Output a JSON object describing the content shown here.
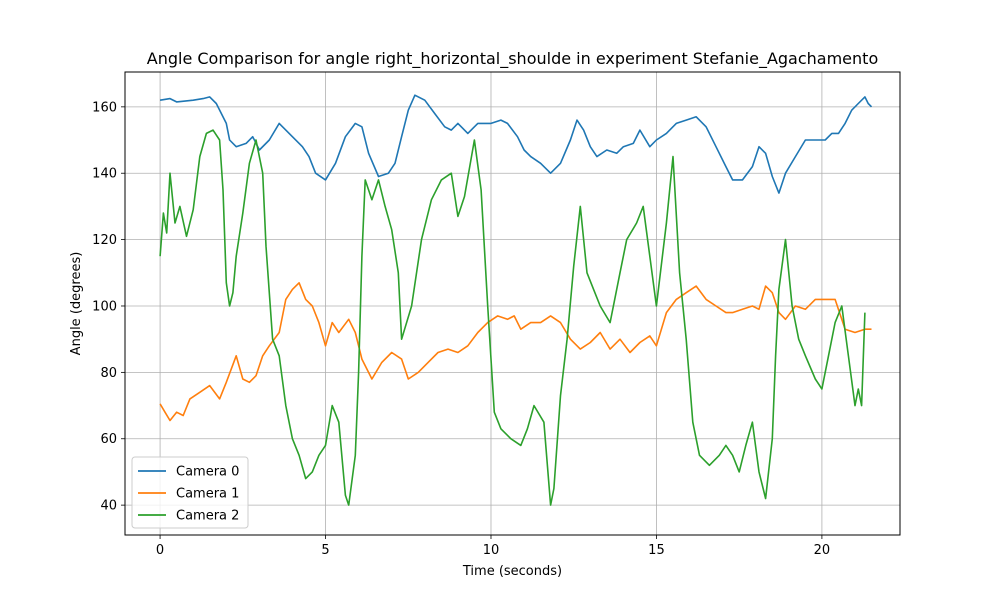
{
  "chart_data": {
    "type": "line",
    "title": "Angle Comparison for angle right_horizontal_shoulde in experiment Stefanie_Agachamento",
    "xlabel": "Time (seconds)",
    "ylabel": "Angle (degrees)",
    "xlim": [
      -1.06,
      22.36
    ],
    "ylim": [
      31,
      170.5
    ],
    "xticks": [
      0,
      5,
      10,
      15,
      20
    ],
    "yticks": [
      40,
      60,
      80,
      100,
      120,
      140,
      160
    ],
    "grid": true,
    "legend_position": "lower-left",
    "series": [
      {
        "name": "Camera 0",
        "color": "#1f77b4",
        "points": [
          [
            0,
            162
          ],
          [
            0.3,
            162.5
          ],
          [
            0.5,
            161.5
          ],
          [
            1.0,
            162
          ],
          [
            1.3,
            162.5
          ],
          [
            1.5,
            163
          ],
          [
            1.7,
            161
          ],
          [
            2.0,
            155
          ],
          [
            2.1,
            150
          ],
          [
            2.3,
            148
          ],
          [
            2.6,
            149
          ],
          [
            2.8,
            151
          ],
          [
            3.0,
            147
          ],
          [
            3.3,
            150
          ],
          [
            3.6,
            155
          ],
          [
            3.8,
            153
          ],
          [
            4.0,
            151
          ],
          [
            4.3,
            148
          ],
          [
            4.5,
            145
          ],
          [
            4.7,
            140
          ],
          [
            5.0,
            138
          ],
          [
            5.3,
            143
          ],
          [
            5.6,
            151
          ],
          [
            5.9,
            155
          ],
          [
            6.1,
            154
          ],
          [
            6.3,
            146
          ],
          [
            6.6,
            139
          ],
          [
            6.9,
            140
          ],
          [
            7.1,
            143
          ],
          [
            7.3,
            151
          ],
          [
            7.5,
            159
          ],
          [
            7.7,
            163.5
          ],
          [
            8.0,
            162
          ],
          [
            8.3,
            158
          ],
          [
            8.6,
            154
          ],
          [
            8.8,
            153
          ],
          [
            9.0,
            155
          ],
          [
            9.3,
            152
          ],
          [
            9.6,
            155
          ],
          [
            10.0,
            155
          ],
          [
            10.3,
            156
          ],
          [
            10.5,
            155
          ],
          [
            10.8,
            151
          ],
          [
            11.0,
            147
          ],
          [
            11.2,
            145
          ],
          [
            11.5,
            143
          ],
          [
            11.8,
            140
          ],
          [
            12.1,
            143
          ],
          [
            12.4,
            150
          ],
          [
            12.6,
            156
          ],
          [
            12.8,
            153
          ],
          [
            13.0,
            148
          ],
          [
            13.2,
            145
          ],
          [
            13.5,
            147
          ],
          [
            13.8,
            146
          ],
          [
            14.0,
            148
          ],
          [
            14.3,
            149
          ],
          [
            14.5,
            153
          ],
          [
            14.8,
            148
          ],
          [
            15.0,
            150
          ],
          [
            15.3,
            152
          ],
          [
            15.6,
            155
          ],
          [
            15.9,
            156
          ],
          [
            16.2,
            157
          ],
          [
            16.5,
            154
          ],
          [
            16.8,
            148
          ],
          [
            17.1,
            142
          ],
          [
            17.3,
            138
          ],
          [
            17.6,
            138
          ],
          [
            17.9,
            142
          ],
          [
            18.1,
            148
          ],
          [
            18.3,
            146
          ],
          [
            18.5,
            139
          ],
          [
            18.7,
            134
          ],
          [
            18.9,
            140
          ],
          [
            19.2,
            145
          ],
          [
            19.5,
            150
          ],
          [
            19.8,
            150
          ],
          [
            20.1,
            150
          ],
          [
            20.3,
            152
          ],
          [
            20.5,
            152
          ],
          [
            20.7,
            155
          ],
          [
            20.9,
            159
          ],
          [
            21.1,
            161
          ],
          [
            21.3,
            163
          ],
          [
            21.4,
            161
          ],
          [
            21.5,
            160
          ]
        ]
      },
      {
        "name": "Camera 1",
        "color": "#ff7f0e",
        "points": [
          [
            0,
            70.5
          ],
          [
            0.15,
            68
          ],
          [
            0.3,
            65.5
          ],
          [
            0.5,
            68
          ],
          [
            0.7,
            67
          ],
          [
            0.9,
            72
          ],
          [
            1.2,
            74
          ],
          [
            1.5,
            76
          ],
          [
            1.8,
            72
          ],
          [
            2.0,
            77
          ],
          [
            2.3,
            85
          ],
          [
            2.5,
            78
          ],
          [
            2.7,
            77
          ],
          [
            2.9,
            79
          ],
          [
            3.1,
            85
          ],
          [
            3.3,
            88
          ],
          [
            3.6,
            92
          ],
          [
            3.8,
            102
          ],
          [
            4.0,
            105
          ],
          [
            4.2,
            107
          ],
          [
            4.4,
            102
          ],
          [
            4.6,
            100
          ],
          [
            4.8,
            95
          ],
          [
            5.0,
            88
          ],
          [
            5.2,
            95
          ],
          [
            5.4,
            92
          ],
          [
            5.7,
            96
          ],
          [
            5.9,
            92
          ],
          [
            6.1,
            84
          ],
          [
            6.4,
            78
          ],
          [
            6.7,
            83
          ],
          [
            7.0,
            86
          ],
          [
            7.3,
            84
          ],
          [
            7.5,
            78
          ],
          [
            7.8,
            80
          ],
          [
            8.1,
            83
          ],
          [
            8.4,
            86
          ],
          [
            8.7,
            87
          ],
          [
            9.0,
            86
          ],
          [
            9.3,
            88
          ],
          [
            9.6,
            92
          ],
          [
            9.9,
            95
          ],
          [
            10.2,
            97
          ],
          [
            10.5,
            96
          ],
          [
            10.7,
            97
          ],
          [
            10.9,
            93
          ],
          [
            11.2,
            95
          ],
          [
            11.5,
            95
          ],
          [
            11.8,
            97
          ],
          [
            12.1,
            95
          ],
          [
            12.4,
            90
          ],
          [
            12.7,
            87
          ],
          [
            13.0,
            89
          ],
          [
            13.3,
            92
          ],
          [
            13.6,
            87
          ],
          [
            13.9,
            90
          ],
          [
            14.2,
            86
          ],
          [
            14.5,
            89
          ],
          [
            14.8,
            91
          ],
          [
            15.0,
            88
          ],
          [
            15.3,
            98
          ],
          [
            15.6,
            102
          ],
          [
            15.9,
            104
          ],
          [
            16.2,
            106
          ],
          [
            16.5,
            102
          ],
          [
            16.8,
            100
          ],
          [
            17.1,
            98
          ],
          [
            17.3,
            98
          ],
          [
            17.6,
            99
          ],
          [
            17.9,
            100
          ],
          [
            18.1,
            99
          ],
          [
            18.3,
            106
          ],
          [
            18.5,
            104
          ],
          [
            18.7,
            98
          ],
          [
            18.9,
            96
          ],
          [
            19.2,
            100
          ],
          [
            19.5,
            99
          ],
          [
            19.8,
            102
          ],
          [
            20.1,
            102
          ],
          [
            20.4,
            102
          ],
          [
            20.7,
            93
          ],
          [
            21.0,
            92
          ],
          [
            21.3,
            93
          ],
          [
            21.5,
            93
          ]
        ]
      },
      {
        "name": "Camera 2",
        "color": "#2ca02c",
        "points": [
          [
            0,
            115
          ],
          [
            0.1,
            128
          ],
          [
            0.2,
            122
          ],
          [
            0.3,
            140
          ],
          [
            0.45,
            125
          ],
          [
            0.6,
            130
          ],
          [
            0.8,
            121
          ],
          [
            1.0,
            129
          ],
          [
            1.2,
            145
          ],
          [
            1.4,
            152
          ],
          [
            1.6,
            153
          ],
          [
            1.8,
            150
          ],
          [
            1.9,
            135
          ],
          [
            2.0,
            107
          ],
          [
            2.1,
            100
          ],
          [
            2.2,
            104
          ],
          [
            2.3,
            115
          ],
          [
            2.5,
            128
          ],
          [
            2.7,
            143
          ],
          [
            2.9,
            150
          ],
          [
            3.1,
            140
          ],
          [
            3.2,
            118
          ],
          [
            3.4,
            90
          ],
          [
            3.6,
            85
          ],
          [
            3.8,
            70
          ],
          [
            4.0,
            60
          ],
          [
            4.2,
            55
          ],
          [
            4.4,
            48
          ],
          [
            4.6,
            50
          ],
          [
            4.8,
            55
          ],
          [
            5.0,
            58
          ],
          [
            5.2,
            70
          ],
          [
            5.4,
            65
          ],
          [
            5.6,
            43
          ],
          [
            5.7,
            40
          ],
          [
            5.9,
            55
          ],
          [
            6.0,
            80
          ],
          [
            6.1,
            115
          ],
          [
            6.2,
            138
          ],
          [
            6.4,
            132
          ],
          [
            6.6,
            138
          ],
          [
            6.8,
            130
          ],
          [
            7.0,
            123
          ],
          [
            7.2,
            110
          ],
          [
            7.3,
            90
          ],
          [
            7.6,
            100
          ],
          [
            7.9,
            120
          ],
          [
            8.2,
            132
          ],
          [
            8.5,
            138
          ],
          [
            8.8,
            140
          ],
          [
            9.0,
            127
          ],
          [
            9.2,
            133
          ],
          [
            9.5,
            150
          ],
          [
            9.7,
            135
          ],
          [
            9.9,
            100
          ],
          [
            10.1,
            68
          ],
          [
            10.3,
            63
          ],
          [
            10.6,
            60
          ],
          [
            10.9,
            58
          ],
          [
            11.1,
            63
          ],
          [
            11.3,
            70
          ],
          [
            11.6,
            65
          ],
          [
            11.8,
            40
          ],
          [
            11.9,
            45
          ],
          [
            12.1,
            73
          ],
          [
            12.3,
            90
          ],
          [
            12.5,
            112
          ],
          [
            12.7,
            130
          ],
          [
            12.9,
            110
          ],
          [
            13.1,
            105
          ],
          [
            13.3,
            100
          ],
          [
            13.6,
            95
          ],
          [
            13.9,
            110
          ],
          [
            14.1,
            120
          ],
          [
            14.4,
            125
          ],
          [
            14.6,
            130
          ],
          [
            14.8,
            115
          ],
          [
            15.0,
            100
          ],
          [
            15.3,
            125
          ],
          [
            15.5,
            145
          ],
          [
            15.7,
            110
          ],
          [
            15.9,
            90
          ],
          [
            16.1,
            65
          ],
          [
            16.3,
            55
          ],
          [
            16.6,
            52
          ],
          [
            16.9,
            55
          ],
          [
            17.1,
            58
          ],
          [
            17.3,
            55
          ],
          [
            17.5,
            50
          ],
          [
            17.7,
            58
          ],
          [
            17.9,
            65
          ],
          [
            18.1,
            50
          ],
          [
            18.3,
            42
          ],
          [
            18.5,
            60
          ],
          [
            18.6,
            85
          ],
          [
            18.7,
            105
          ],
          [
            18.9,
            120
          ],
          [
            19.1,
            100
          ],
          [
            19.3,
            90
          ],
          [
            19.5,
            85
          ],
          [
            19.8,
            78
          ],
          [
            20.0,
            75
          ],
          [
            20.2,
            85
          ],
          [
            20.4,
            95
          ],
          [
            20.6,
            100
          ],
          [
            20.8,
            85
          ],
          [
            21.0,
            70
          ],
          [
            21.1,
            75
          ],
          [
            21.2,
            70
          ],
          [
            21.3,
            98
          ]
        ]
      }
    ]
  }
}
